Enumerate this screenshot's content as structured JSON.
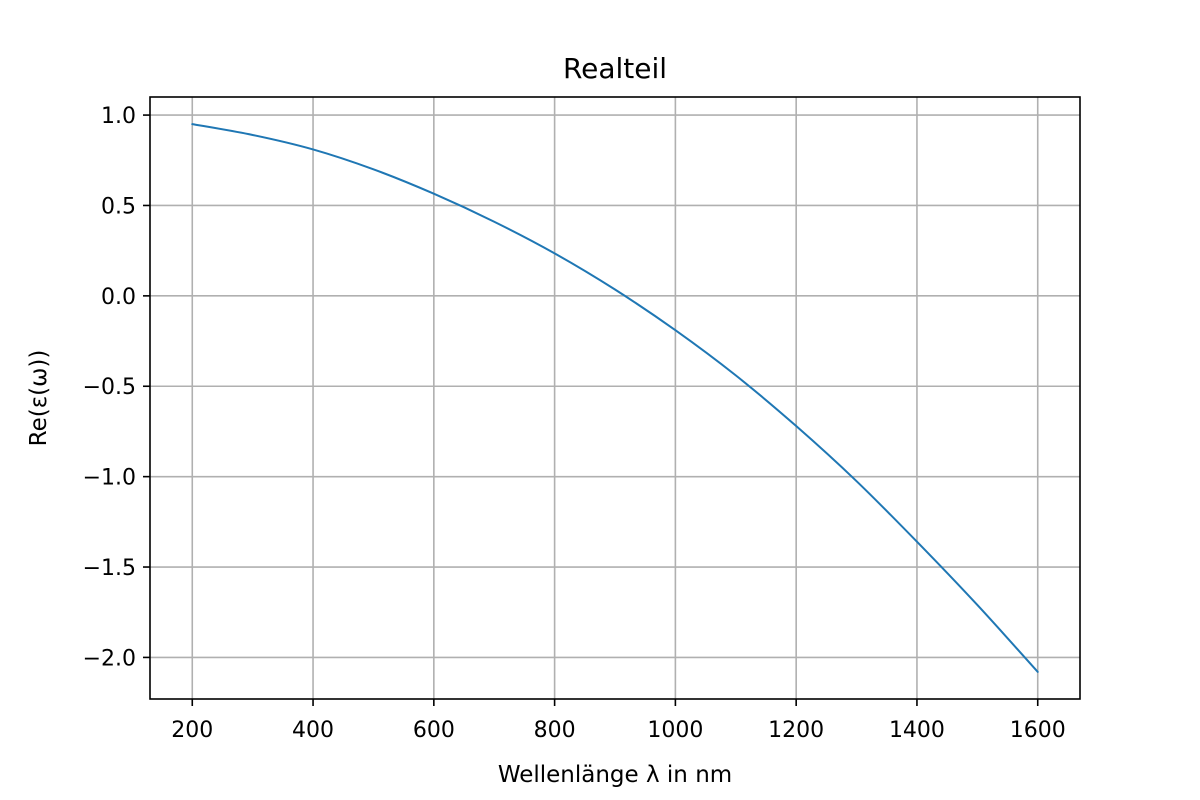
{
  "chart_data": {
    "type": "line",
    "title": "Realteil",
    "xlabel": "Wellenlänge λ in nm",
    "ylabel": "Re(ε(ω))",
    "xlim": [
      130,
      1670
    ],
    "ylim": [
      -2.23,
      1.1
    ],
    "xticks": [
      200,
      400,
      600,
      800,
      1000,
      1200,
      1400,
      1600
    ],
    "yticks": [
      1.0,
      0.5,
      0.0,
      -0.5,
      -1.0,
      -1.5,
      -2.0
    ],
    "xtick_labels": [
      "200",
      "400",
      "600",
      "800",
      "1000",
      "1200",
      "1400",
      "1600"
    ],
    "ytick_labels": [
      "1.0",
      "0.5",
      "0.0",
      "−0.5",
      "−1.0",
      "−1.5",
      "−2.0"
    ],
    "grid": true,
    "series": [
      {
        "color": "#1f77b4",
        "x": [
          200,
          300,
          400,
          500,
          600,
          700,
          800,
          900,
          1000,
          1100,
          1200,
          1300,
          1400,
          1500,
          1600
        ],
        "y": [
          0.95,
          0.89,
          0.81,
          0.7,
          0.565,
          0.41,
          0.235,
          0.035,
          -0.19,
          -0.44,
          -0.72,
          -1.025,
          -1.36,
          -1.71,
          -2.08
        ]
      }
    ]
  }
}
